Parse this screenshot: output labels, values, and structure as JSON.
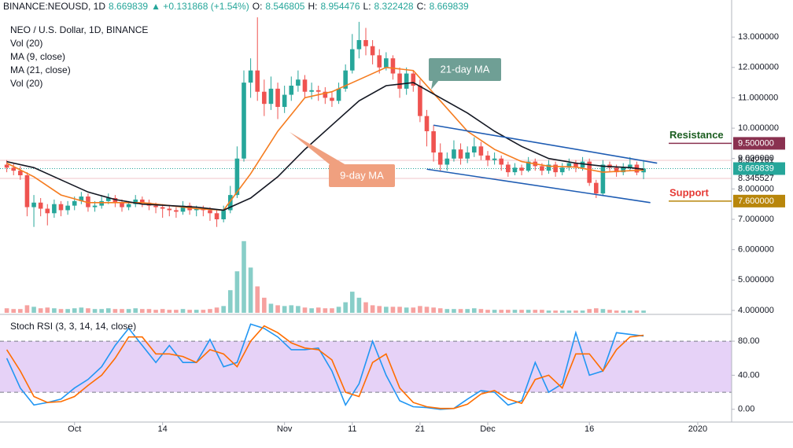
{
  "header": {
    "symbol": "BINANCE:NEOUSD, 1D",
    "change": "▲ +0.131868 (+1.54%)",
    "ohlc_labels": [
      "O:",
      "H:",
      "L:",
      "C:"
    ]
  },
  "chart_data": [
    {
      "type": "candlestick",
      "title": "NEO / U.S. Dollar, 1D, BINANCE",
      "indicators": [
        "Vol (20)",
        "MA (9, close)",
        "MA (21, close)",
        "Vol (20)"
      ],
      "up_color": "#26a69a",
      "down_color": "#ef5350",
      "xlim": [
        -1,
        107
      ],
      "ylim": [
        3.87,
        14.22
      ],
      "yticks": [
        {
          "value": 4,
          "label": "4.000000"
        },
        {
          "value": 5,
          "label": "5.000000"
        },
        {
          "value": 6,
          "label": "6.000000"
        },
        {
          "value": 7,
          "label": "7.000000"
        },
        {
          "value": 8,
          "label": "8.000000"
        },
        {
          "value": 9,
          "label": "9.000000"
        },
        {
          "value": 10,
          "label": "10.000000"
        },
        {
          "value": 11,
          "label": "11.000000"
        },
        {
          "value": 12,
          "label": "12.000000"
        },
        {
          "value": 13,
          "label": "13.000000"
        }
      ],
      "x": [
        0,
        1,
        2,
        3,
        4,
        5,
        6,
        7,
        8,
        9,
        10,
        11,
        12,
        13,
        14,
        15,
        16,
        17,
        18,
        19,
        20,
        21,
        22,
        23,
        24,
        25,
        26,
        27,
        28,
        29,
        30,
        31,
        32,
        33,
        34,
        35,
        36,
        37,
        38,
        39,
        40,
        41,
        42,
        43,
        44,
        45,
        46,
        47,
        48,
        49,
        50,
        51,
        52,
        53,
        54,
        55,
        56,
        57,
        58,
        59,
        60,
        61,
        62,
        63,
        64,
        65,
        66,
        67,
        68,
        69,
        70,
        71,
        72,
        73,
        74,
        75,
        76,
        77,
        78,
        79,
        80,
        81,
        82,
        83,
        84,
        85,
        86,
        87,
        88,
        89,
        90,
        91,
        92,
        93,
        94
      ],
      "candles": [
        [
          8.8,
          8.95,
          8.55,
          8.7
        ],
        [
          8.7,
          8.85,
          8.45,
          8.6
        ],
        [
          8.6,
          8.75,
          8.3,
          8.45
        ],
        [
          8.45,
          8.55,
          7.1,
          7.4
        ],
        [
          7.4,
          7.8,
          6.75,
          7.55
        ],
        [
          7.55,
          7.7,
          7.1,
          7.35
        ],
        [
          7.35,
          7.5,
          6.8,
          7.2
        ],
        [
          7.2,
          7.65,
          7.05,
          7.5
        ],
        [
          7.5,
          7.6,
          7.1,
          7.3
        ],
        [
          7.3,
          7.6,
          7.15,
          7.45
        ],
        [
          7.45,
          7.75,
          7.3,
          7.6
        ],
        [
          7.6,
          7.9,
          7.5,
          7.75
        ],
        [
          7.75,
          7.85,
          7.25,
          7.4
        ],
        [
          7.4,
          7.6,
          7.25,
          7.45
        ],
        [
          7.45,
          7.75,
          7.35,
          7.6
        ],
        [
          7.6,
          7.85,
          7.5,
          7.7
        ],
        [
          7.7,
          7.8,
          7.4,
          7.55
        ],
        [
          7.55,
          7.65,
          7.25,
          7.4
        ],
        [
          7.4,
          7.6,
          7.3,
          7.5
        ],
        [
          7.5,
          7.8,
          7.4,
          7.65
        ],
        [
          7.65,
          7.75,
          7.4,
          7.55
        ],
        [
          7.55,
          7.65,
          7.3,
          7.45
        ],
        [
          7.45,
          7.55,
          7.2,
          7.4
        ],
        [
          7.4,
          7.5,
          7.05,
          7.35
        ],
        [
          7.35,
          7.45,
          7.1,
          7.3
        ],
        [
          7.3,
          7.4,
          7.05,
          7.25
        ],
        [
          7.25,
          7.6,
          7.15,
          7.45
        ],
        [
          7.45,
          7.55,
          7.15,
          7.3
        ],
        [
          7.3,
          7.45,
          7.1,
          7.35
        ],
        [
          7.35,
          7.45,
          7.1,
          7.3
        ],
        [
          7.3,
          7.4,
          6.95,
          7.2
        ],
        [
          7.2,
          7.3,
          6.75,
          7.0
        ],
        [
          7.0,
          7.45,
          6.9,
          7.3
        ],
        [
          7.3,
          8.1,
          7.2,
          7.8
        ],
        [
          7.8,
          9.4,
          7.7,
          9.0
        ],
        [
          9.0,
          11.9,
          8.9,
          11.5
        ],
        [
          11.5,
          12.3,
          11.0,
          11.9
        ],
        [
          11.9,
          13.65,
          10.9,
          11.2
        ],
        [
          11.2,
          11.6,
          10.4,
          10.8
        ],
        [
          10.8,
          11.7,
          10.6,
          11.3
        ],
        [
          11.3,
          11.5,
          10.3,
          10.7
        ],
        [
          10.7,
          11.4,
          10.5,
          11.1
        ],
        [
          11.1,
          11.7,
          10.9,
          11.4
        ],
        [
          11.4,
          11.9,
          11.2,
          11.6
        ],
        [
          11.6,
          11.75,
          11.0,
          11.2
        ],
        [
          11.2,
          11.5,
          10.95,
          11.25
        ],
        [
          11.25,
          11.4,
          10.9,
          11.2
        ],
        [
          11.2,
          11.35,
          10.8,
          11.0
        ],
        [
          11.0,
          11.2,
          10.7,
          10.9
        ],
        [
          10.9,
          11.5,
          10.8,
          11.3
        ],
        [
          11.3,
          12.1,
          11.2,
          11.9
        ],
        [
          11.9,
          13.1,
          11.8,
          12.6
        ],
        [
          12.6,
          13.5,
          12.3,
          12.9
        ],
        [
          12.9,
          13.3,
          12.4,
          12.7
        ],
        [
          12.7,
          12.9,
          12.1,
          12.4
        ],
        [
          12.4,
          12.6,
          11.8,
          12.0
        ],
        [
          12.0,
          12.5,
          11.9,
          12.3
        ],
        [
          12.3,
          12.4,
          11.6,
          11.8
        ],
        [
          11.8,
          12.0,
          11.0,
          11.3
        ],
        [
          11.3,
          12.0,
          11.1,
          11.8
        ],
        [
          11.8,
          11.9,
          11.2,
          11.4
        ],
        [
          11.4,
          11.6,
          10.2,
          10.4
        ],
        [
          10.4,
          10.6,
          9.4,
          9.9
        ],
        [
          9.9,
          10.1,
          8.9,
          9.2
        ],
        [
          9.2,
          9.5,
          8.6,
          8.8
        ],
        [
          8.8,
          9.2,
          8.6,
          9.0
        ],
        [
          9.0,
          9.6,
          8.9,
          9.3
        ],
        [
          9.3,
          9.5,
          8.8,
          9.0
        ],
        [
          9.0,
          9.4,
          8.85,
          9.2
        ],
        [
          9.2,
          9.7,
          9.05,
          9.4
        ],
        [
          9.4,
          9.55,
          8.95,
          9.1
        ],
        [
          9.1,
          9.25,
          8.75,
          8.95
        ],
        [
          8.95,
          9.2,
          8.8,
          9.0
        ],
        [
          9.0,
          9.1,
          8.6,
          8.8
        ],
        [
          8.8,
          8.9,
          8.4,
          8.55
        ],
        [
          8.55,
          8.85,
          8.45,
          8.7
        ],
        [
          8.7,
          8.8,
          8.45,
          8.6
        ],
        [
          8.6,
          9.05,
          8.55,
          8.9
        ],
        [
          8.9,
          9.0,
          8.6,
          8.75
        ],
        [
          8.75,
          8.85,
          8.45,
          8.6
        ],
        [
          8.6,
          8.95,
          8.5,
          8.8
        ],
        [
          8.8,
          8.9,
          8.4,
          8.55
        ],
        [
          8.55,
          8.85,
          8.45,
          8.7
        ],
        [
          8.7,
          9.0,
          8.6,
          8.85
        ],
        [
          8.85,
          8.95,
          8.55,
          8.7
        ],
        [
          8.7,
          9.05,
          8.6,
          8.9
        ],
        [
          8.9,
          9.0,
          8.1,
          8.2
        ],
        [
          8.2,
          8.3,
          7.7,
          7.85
        ],
        [
          7.85,
          8.95,
          7.8,
          8.8
        ],
        [
          8.8,
          8.9,
          8.55,
          8.7
        ],
        [
          8.7,
          8.8,
          8.4,
          8.55
        ],
        [
          8.55,
          8.85,
          8.45,
          8.7
        ],
        [
          8.7,
          9.05,
          8.6,
          8.8
        ],
        [
          8.8,
          8.9,
          8.45,
          8.54
        ],
        [
          8.546805,
          8.954476,
          8.322428,
          8.669839
        ]
      ],
      "volume": [
        6,
        5,
        5,
        10,
        8,
        6,
        7,
        6,
        5,
        5,
        6,
        7,
        6,
        5,
        5,
        6,
        5,
        5,
        5,
        6,
        5,
        5,
        4,
        5,
        4,
        4,
        5,
        4,
        4,
        4,
        5,
        7,
        9,
        30,
        55,
        95,
        60,
        35,
        20,
        12,
        10,
        9,
        10,
        9,
        7,
        6,
        7,
        6,
        6,
        8,
        14,
        28,
        20,
        14,
        10,
        9,
        8,
        8,
        8,
        7,
        7,
        9,
        8,
        7,
        6,
        5,
        5,
        5,
        5,
        6,
        5,
        4,
        4,
        4,
        4,
        4,
        4,
        4,
        4,
        4,
        3,
        3,
        3,
        3,
        3,
        3,
        5,
        6,
        5,
        4,
        3,
        3,
        3,
        3,
        3
      ],
      "volume_ylim": [
        0,
        100
      ],
      "series": [
        {
          "name": "9-day MA",
          "color": "#f57c1f",
          "x": [
            0,
            4,
            8,
            12,
            16,
            20,
            24,
            28,
            32,
            36,
            40,
            44,
            48,
            52,
            56,
            60,
            64,
            68,
            72,
            76,
            80,
            84,
            88,
            92,
            94
          ],
          "values": [
            8.85,
            8.4,
            7.8,
            7.55,
            7.55,
            7.55,
            7.45,
            7.35,
            7.3,
            8.5,
            9.9,
            11.0,
            11.2,
            11.6,
            12.0,
            11.9,
            10.9,
            9.9,
            9.3,
            8.9,
            8.75,
            8.72,
            8.55,
            8.6,
            8.62
          ]
        },
        {
          "name": "21-day MA",
          "color": "#131722",
          "x": [
            0,
            4,
            8,
            12,
            16,
            20,
            24,
            28,
            32,
            36,
            40,
            44,
            48,
            52,
            56,
            60,
            64,
            68,
            72,
            76,
            80,
            84,
            88,
            92,
            94
          ],
          "values": [
            8.9,
            8.7,
            8.3,
            7.9,
            7.65,
            7.5,
            7.45,
            7.4,
            7.3,
            7.7,
            8.4,
            9.3,
            10.1,
            10.9,
            11.4,
            11.5,
            11.0,
            10.5,
            9.9,
            9.4,
            9.0,
            8.85,
            8.75,
            8.7,
            8.65
          ]
        }
      ],
      "channel_color": "#1e5cb3",
      "channel": [
        {
          "x1": 63,
          "y1": 10.1,
          "x2": 96,
          "y2": 8.85
        },
        {
          "x1": 62,
          "y1": 8.65,
          "x2": 95,
          "y2": 7.55
        }
      ],
      "levels": [
        {
          "name": "Resistance",
          "value": 9.5,
          "value_label": "9.500000",
          "color": "#8a3150",
          "name_color": "#1b5e20"
        },
        {
          "name": "Support",
          "value": 7.6,
          "value_label": "7.600000",
          "color": "#b8860b",
          "name_color": "#e53935"
        }
      ],
      "price_lines": [
        {
          "value": 8.942161,
          "color": "#f2c4c9"
        },
        {
          "value": 8.345527,
          "color": "#f2c4c9"
        }
      ]
    },
    {
      "type": "line",
      "title": "Stoch RSI (3, 3, 14, 14, close)",
      "xlim": [
        -1,
        107
      ],
      "ylim": [
        -15,
        105
      ],
      "xticks": [
        {
          "value": 10,
          "label": "Oct"
        },
        {
          "value": 23,
          "label": "14"
        },
        {
          "value": 41,
          "label": "Nov"
        },
        {
          "value": 51,
          "label": "11"
        },
        {
          "value": 61,
          "label": "21"
        },
        {
          "value": 71,
          "label": "Dec"
        },
        {
          "value": 86,
          "label": "16"
        },
        {
          "value": 102,
          "label": "2020"
        }
      ],
      "yticks": [
        {
          "value": 0,
          "label": "0.00"
        },
        {
          "value": 40,
          "label": "40.00"
        },
        {
          "value": 80,
          "label": "80.00"
        }
      ],
      "band": [
        20,
        80
      ],
      "band_color": "#e6d2f7",
      "x": [
        0,
        2,
        4,
        6,
        8,
        10,
        12,
        14,
        16,
        18,
        20,
        22,
        24,
        26,
        28,
        30,
        32,
        34,
        36,
        38,
        40,
        42,
        44,
        46,
        48,
        50,
        52,
        54,
        56,
        58,
        60,
        62,
        64,
        66,
        68,
        70,
        72,
        74,
        76,
        78,
        80,
        82,
        84,
        86,
        88,
        90,
        92,
        94
      ],
      "series": [
        {
          "color": "#2196f3",
          "values": [
            60,
            25,
            5,
            8,
            12,
            25,
            35,
            50,
            75,
            95,
            75,
            55,
            75,
            55,
            55,
            82,
            50,
            55,
            100,
            95,
            85,
            70,
            70,
            72,
            45,
            5,
            30,
            80,
            40,
            10,
            3,
            2,
            0,
            1,
            12,
            22,
            20,
            5,
            10,
            55,
            20,
            30,
            90,
            40,
            45,
            90,
            88,
            86
          ]
        },
        {
          "color": "#ff6d00",
          "values": [
            70,
            45,
            15,
            8,
            9,
            15,
            28,
            40,
            60,
            85,
            85,
            65,
            65,
            62,
            55,
            70,
            65,
            50,
            80,
            98,
            90,
            78,
            72,
            70,
            58,
            20,
            15,
            55,
            65,
            25,
            8,
            3,
            1,
            1,
            6,
            18,
            22,
            12,
            7,
            35,
            40,
            25,
            65,
            65,
            45,
            70,
            85,
            87
          ]
        }
      ]
    }
  ]
}
